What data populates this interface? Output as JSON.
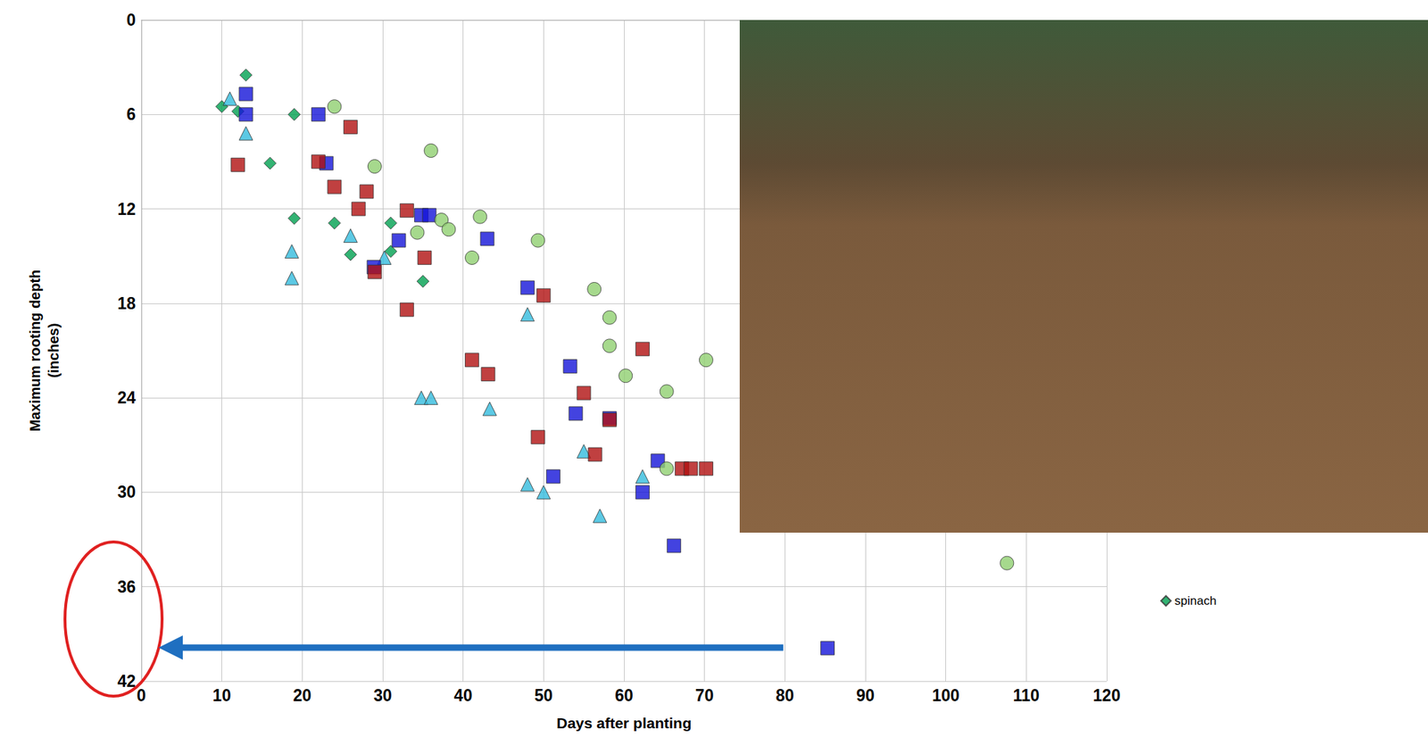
{
  "chart_data": {
    "type": "scatter",
    "x_label": "Days after planting",
    "y_label": "Maximum rooting depth\n(inches)",
    "xlim": [
      0,
      120
    ],
    "xticks": [
      0,
      10,
      20,
      30,
      40,
      50,
      60,
      70,
      80,
      90,
      100,
      110,
      120
    ],
    "ylim": [
      0,
      42
    ],
    "yticks": [
      0,
      6,
      12,
      18,
      24,
      30,
      36,
      42
    ],
    "grid": true,
    "legend": "right",
    "series": [
      {
        "name": "spinach",
        "color": "#00a050",
        "marker": "diamond",
        "x": [
          13,
          10,
          12,
          16,
          19,
          19,
          24,
          26,
          31,
          31,
          35
        ],
        "values": [
          3.5,
          5.5,
          5.8,
          9.1,
          6,
          12.6,
          12.9,
          14.9,
          12.9,
          14.7,
          16.6
        ]
      },
      {
        "color": "#33bbdd",
        "marker": "triangle",
        "x": [
          11,
          13,
          18.7,
          18.7,
          26,
          30.2,
          34.8,
          36,
          43.3,
          48,
          48,
          50,
          55,
          57,
          62.3
        ],
        "values": [
          5,
          7.2,
          14.7,
          16.4,
          13.7,
          15.1,
          24,
          24,
          24.7,
          18.7,
          29.5,
          30,
          27.4,
          31.5,
          29
        ]
      },
      {
        "color": "#1414d8",
        "marker": "square",
        "x": [
          13,
          13,
          22,
          23,
          28.9,
          32,
          34.8,
          35.8,
          43,
          48,
          53.3,
          54,
          58.2,
          51.2,
          64.2,
          62.3,
          66.2,
          85.3
        ],
        "values": [
          4.7,
          6,
          6,
          9.1,
          15.7,
          14,
          12.4,
          12.4,
          13.9,
          17,
          22,
          25,
          25.3,
          29,
          28,
          30,
          33.4,
          39.9
        ]
      },
      {
        "color": "#b01010",
        "marker": "square",
        "x": [
          12,
          22,
          24,
          26,
          27,
          28,
          33,
          35.2,
          29,
          33,
          41.1,
          43.1,
          50,
          55,
          49.3,
          56.4,
          58.2,
          62.3,
          67.2,
          68.3,
          70.2
        ],
        "values": [
          9.2,
          9,
          10.6,
          6.8,
          12,
          10.9,
          12.1,
          15.1,
          16,
          18.4,
          21.6,
          22.5,
          17.5,
          23.7,
          26.5,
          27.6,
          25.4,
          20.9,
          28.5,
          28.5,
          28.5
        ]
      },
      {
        "color": "#90d070",
        "marker": "circle",
        "x": [
          24,
          36,
          29,
          34.3,
          37.3,
          38.2,
          42.1,
          41.1,
          49.3,
          56.3,
          58.2,
          58.2,
          60.2,
          65.3,
          70.2,
          65.3,
          107.6
        ],
        "values": [
          5.5,
          8.3,
          9.3,
          13.5,
          12.7,
          13.3,
          12.5,
          15.1,
          14,
          17.1,
          18.9,
          20.7,
          22.6,
          23.6,
          21.6,
          28.5,
          34.5
        ]
      }
    ]
  }
}
